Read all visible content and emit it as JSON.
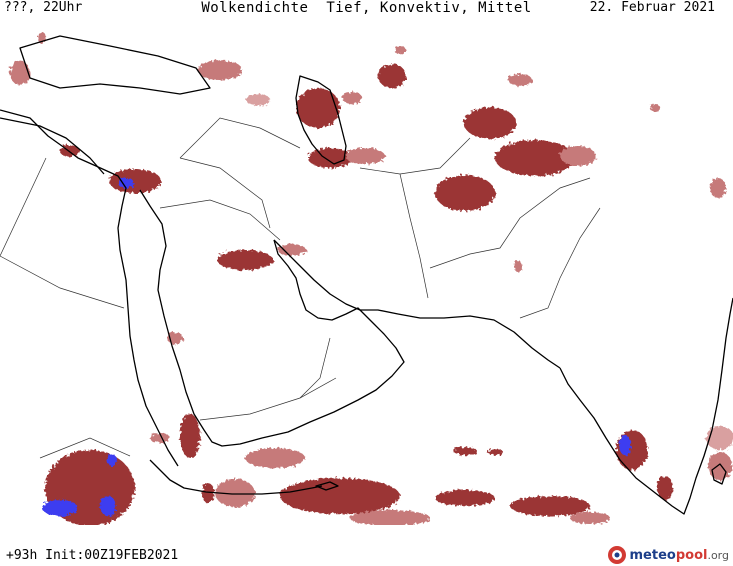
{
  "header": {
    "left": "???, 22Uhr",
    "center": "Wolkendichte  Tief, Konvektiv, Mittel",
    "right": "22. Februar 2021"
  },
  "footer": {
    "run_info": "+93h Init:00Z19FEB2021",
    "logo_prefix": "meteo",
    "logo_pool": "pool",
    "logo_tld": ".org"
  },
  "map": {
    "region": "Middle East / Arabian Peninsula / South Asia",
    "cloud_colors": {
      "low": "#e8c8c8",
      "medium": "#c67a7a",
      "high": "#9b3535",
      "convective": "#3c3cf0"
    },
    "coastline_color": "#000000",
    "border_color": "#333333"
  }
}
